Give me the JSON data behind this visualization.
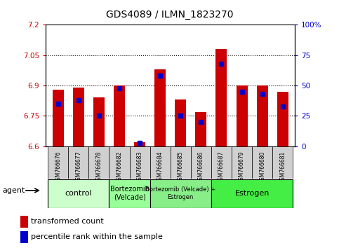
{
  "title": "GDS4089 / ILMN_1823270",
  "samples": [
    "GSM766676",
    "GSM766677",
    "GSM766678",
    "GSM766682",
    "GSM766683",
    "GSM766684",
    "GSM766685",
    "GSM766686",
    "GSM766687",
    "GSM766679",
    "GSM766680",
    "GSM766681"
  ],
  "transformed_count": [
    6.88,
    6.89,
    6.84,
    6.9,
    6.62,
    6.98,
    6.83,
    6.77,
    7.08,
    6.9,
    6.9,
    6.87
  ],
  "percentile_rank": [
    35,
    38,
    25,
    48,
    3,
    58,
    25,
    20,
    68,
    45,
    43,
    33
  ],
  "groups": [
    {
      "label": "control",
      "start": 0,
      "end": 2,
      "color": "#ccffcc",
      "fontsize": 8
    },
    {
      "label": "Bortezomib\n(Velcade)",
      "start": 3,
      "end": 4,
      "color": "#99ff99",
      "fontsize": 7
    },
    {
      "label": "Bortezomib (Velcade) +\nEstrogen",
      "start": 5,
      "end": 7,
      "color": "#88ee88",
      "fontsize": 6
    },
    {
      "label": "Estrogen",
      "start": 8,
      "end": 11,
      "color": "#44ee44",
      "fontsize": 8
    }
  ],
  "ymin": 6.6,
  "ymax": 7.2,
  "yticks": [
    6.6,
    6.75,
    6.9,
    7.05,
    7.2
  ],
  "ytick_labels": [
    "6.6",
    "6.75",
    "6.9",
    "7.05",
    "7.2"
  ],
  "right_yticks": [
    0,
    25,
    50,
    75,
    100
  ],
  "right_ytick_labels": [
    "0",
    "25",
    "50",
    "75",
    "100%"
  ],
  "bar_color": "#cc0000",
  "dot_color": "#0000cc",
  "bar_width": 0.55,
  "plot_bg": "#ffffff",
  "background_color": "#ffffff"
}
